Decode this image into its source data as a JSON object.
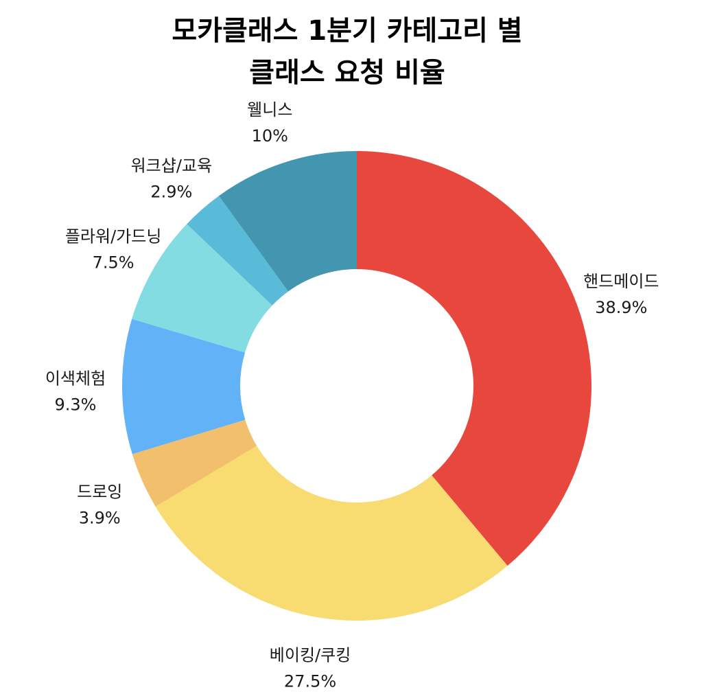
{
  "chart_data": {
    "type": "pie",
    "variant": "donut",
    "title_lines": [
      "모카클래스 1분기 카테고리 별",
      "클래스 요청 비율"
    ],
    "direction": "clockwise",
    "start": "top",
    "slices": [
      {
        "label": "핸드메이드",
        "value": 38.9,
        "value_label": "38.9%",
        "color": "#E8473E"
      },
      {
        "label": "베이킹/쿠킹",
        "value": 27.5,
        "value_label": "27.5%",
        "color": "#F8DC72"
      },
      {
        "label": "드로잉",
        "value": 3.9,
        "value_label": "3.9%",
        "color": "#F2C06C"
      },
      {
        "label": "이색체험",
        "value": 9.3,
        "value_label": "9.3%",
        "color": "#62B2F8"
      },
      {
        "label": "플라워/가드닝",
        "value": 7.5,
        "value_label": "7.5%",
        "color": "#84DCE3"
      },
      {
        "label": "워크샵/교육",
        "value": 2.9,
        "value_label": "2.9%",
        "color": "#5ABBD9"
      },
      {
        "label": "웰니스",
        "value": 10,
        "value_label": "10%",
        "color": "#4396B0"
      }
    ]
  }
}
